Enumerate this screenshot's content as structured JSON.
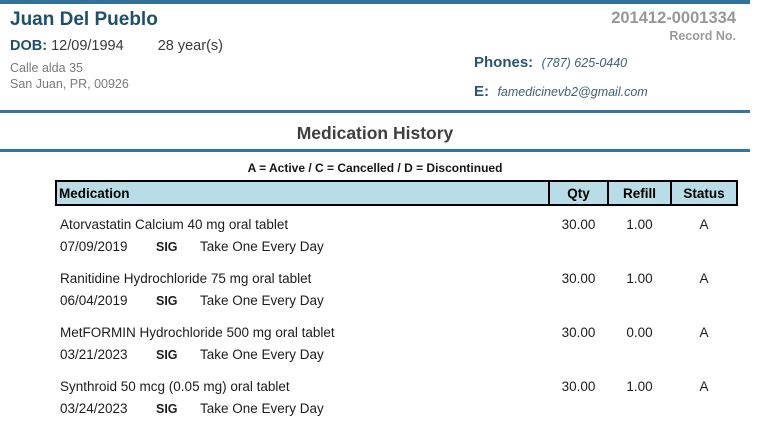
{
  "patient": {
    "name": "Juan Del Pueblo",
    "dob_label": "DOB:",
    "dob": "12/09/1994",
    "age": "28 year(s)",
    "address_line1": "Calle alda 35",
    "address_line2": "San Juan, PR, 00926",
    "record_number": "201412-0001334",
    "record_number_label": "Record No.",
    "phones_label": "Phones:",
    "phone": "(787) 625-0440",
    "email_label": "E:",
    "email": "famedicinevb2@gmail.com"
  },
  "section": {
    "title": "Medication History",
    "legend": "A = Active / C = Cancelled / D = Discontinued"
  },
  "table": {
    "headers": [
      "Medication",
      "Qty",
      "Refill",
      "Status"
    ],
    "rows": [
      {
        "medication": "Atorvastatin Calcium 40 mg oral tablet",
        "qty": "30.00",
        "refill": "1.00",
        "status": "A",
        "date": "07/09/2019",
        "sig_label": "SIG",
        "sig": "Take One Every Day"
      },
      {
        "medication": "Ranitidine Hydrochloride 75 mg oral tablet",
        "qty": "30.00",
        "refill": "1.00",
        "status": "A",
        "date": "06/04/2019",
        "sig_label": "SIG",
        "sig": "Take One Every Day"
      },
      {
        "medication": "MetFORMIN Hydrochloride 500 mg oral tablet",
        "qty": "30.00",
        "refill": "0.00",
        "status": "A",
        "date": "03/21/2023",
        "sig_label": "SIG",
        "sig": "Take One Every Day"
      },
      {
        "medication": "Synthroid 50 mcg (0.05 mg) oral tablet",
        "qty": "30.00",
        "refill": "1.00",
        "status": "A",
        "date": "03/24/2023",
        "sig_label": "SIG",
        "sig": "Take One Every Day"
      }
    ]
  },
  "colors": {
    "accent_line": "#35749b",
    "table_header_bg": "#b9dde6",
    "label_blue": "#1f4f69",
    "record_gray": "#979797"
  }
}
